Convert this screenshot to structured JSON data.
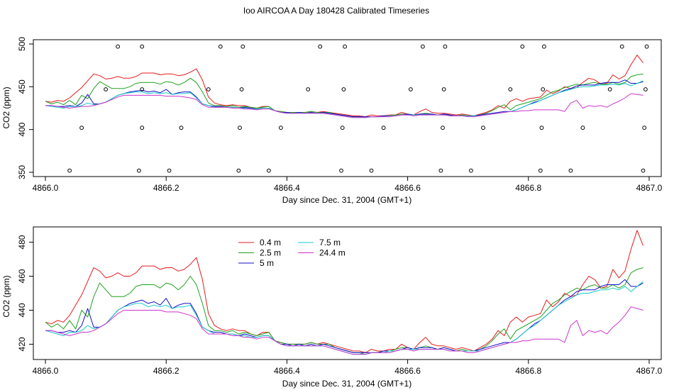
{
  "title": "Ioo AIRCOA A  Day 180428  Calibrated Timeseries",
  "colors": {
    "0.4 m": "#e41a1c",
    "2.5 m": "#1fa01f",
    "5 m": "#1010c8",
    "7.5 m": "#19c8c8",
    "24.4 m": "#cc33cc",
    "points": "#000000"
  },
  "chart_data": [
    {
      "type": "scatter",
      "panel": "top",
      "xlabel": "Day since Dec. 31, 2004 (GMT+1)",
      "ylabel": "CO2 (ppm)",
      "xlim": [
        4865.98,
        4867.02
      ],
      "ylim": [
        345,
        505
      ],
      "xticks": [
        4866.0,
        4866.2,
        4866.4,
        4866.6,
        4866.8,
        4867.0
      ],
      "xtick_labels": [
        "4866.0",
        "4866.2",
        "4866.4",
        "4866.6",
        "4866.8",
        "4867.0"
      ],
      "yticks": [
        350,
        400,
        450,
        500
      ],
      "ytick_labels": [
        "350",
        "400",
        "450",
        "500"
      ],
      "series_names": [
        "0.4 m",
        "2.5 m",
        "5 m",
        "7.5 m",
        "24.4 m"
      ],
      "points": {
        "x": [
          4866.04,
          4866.06,
          4866.1,
          4866.12,
          4866.155,
          4866.16,
          4866.16,
          4866.16,
          4866.205,
          4866.225,
          4866.27,
          4866.29,
          4866.32,
          4866.322,
          4866.325,
          4866.327,
          4866.37,
          4866.39,
          4866.435,
          4866.455,
          4866.49,
          4866.492,
          4866.494,
          4866.496,
          4866.54,
          4866.56,
          4866.605,
          4866.625,
          4866.655,
          4866.658,
          4866.66,
          4866.662,
          4866.705,
          4866.725,
          4866.77,
          4866.79,
          4866.82,
          4866.822,
          4866.824,
          4866.826,
          4866.87,
          4866.89,
          4866.935,
          4866.955,
          4866.99,
          4866.992,
          4866.994,
          4866.996
        ],
        "y": [
          352,
          402,
          447,
          497,
          352,
          402,
          447,
          497,
          352,
          402,
          447,
          497,
          352,
          402,
          447,
          497,
          352,
          402,
          447,
          497,
          352,
          402,
          447,
          497,
          352,
          402,
          447,
          497,
          352,
          402,
          447,
          497,
          352,
          402,
          447,
          497,
          352,
          402,
          447,
          497,
          352,
          402,
          447,
          497,
          352,
          402,
          447,
          497
        ]
      },
      "series": [
        {
          "name": "0.4 m",
          "values": [
            433,
            432,
            434,
            433,
            437,
            443,
            449,
            457,
            465,
            463,
            459,
            460,
            462,
            460,
            460,
            462,
            466,
            466,
            466,
            464,
            465,
            465,
            463,
            464,
            467,
            471,
            458,
            438,
            431,
            429,
            428,
            429,
            428,
            428,
            426,
            425,
            427,
            427,
            422,
            421,
            420,
            420,
            420,
            420,
            421,
            420,
            421,
            420,
            419,
            418,
            417,
            416,
            416,
            415,
            417,
            416,
            416,
            417,
            417,
            420,
            418,
            417,
            421,
            424,
            420,
            419,
            419,
            418,
            417,
            418,
            417,
            416,
            418,
            420,
            423,
            428,
            425,
            433,
            436,
            433,
            436,
            437,
            438,
            446,
            442,
            445,
            450,
            448,
            449,
            455,
            460,
            458,
            453,
            454,
            464,
            459,
            463,
            476,
            487,
            478
          ]
        },
        {
          "name": "2.5 m",
          "values": [
            433,
            430,
            432,
            429,
            434,
            429,
            440,
            436,
            448,
            456,
            452,
            448,
            448,
            448,
            450,
            454,
            455,
            455,
            455,
            453,
            456,
            455,
            452,
            455,
            460,
            455,
            444,
            431,
            428,
            428,
            427,
            428,
            426,
            427,
            426,
            425,
            426,
            427,
            422,
            421,
            420,
            420,
            420,
            420,
            421,
            420,
            420,
            420,
            418,
            417,
            416,
            415,
            415,
            414,
            415,
            415,
            416,
            416,
            417,
            418,
            418,
            417,
            418,
            419,
            418,
            417,
            418,
            417,
            416,
            417,
            416,
            416,
            417,
            419,
            422,
            426,
            429,
            423,
            428,
            430,
            432,
            434,
            436,
            440,
            444,
            446,
            449,
            451,
            453,
            452,
            454,
            455,
            453,
            453,
            455,
            453,
            455,
            462,
            464,
            465
          ]
        },
        {
          "name": "5 m",
          "values": [
            428,
            428,
            427,
            427,
            428,
            427,
            431,
            441,
            430,
            430,
            432,
            436,
            440,
            442,
            444,
            445,
            446,
            444,
            445,
            443,
            447,
            441,
            443,
            444,
            444,
            438,
            430,
            428,
            427,
            427,
            426,
            426,
            425,
            426,
            425,
            424,
            425,
            425,
            422,
            420,
            420,
            419,
            420,
            419,
            420,
            419,
            420,
            419,
            418,
            417,
            416,
            415,
            415,
            415,
            415,
            415,
            416,
            416,
            416,
            417,
            418,
            417,
            418,
            418,
            418,
            417,
            418,
            417,
            416,
            416,
            416,
            416,
            417,
            418,
            419,
            420,
            421,
            421,
            423,
            426,
            429,
            432,
            434,
            437,
            440,
            443,
            446,
            448,
            451,
            452,
            452,
            452,
            454,
            455,
            455,
            455,
            458,
            454,
            454,
            456
          ]
        },
        {
          "name": "7.5 m",
          "values": [
            428,
            427,
            426,
            425,
            427,
            427,
            428,
            431,
            429,
            430,
            432,
            436,
            440,
            442,
            443,
            444,
            444,
            442,
            443,
            442,
            443,
            441,
            442,
            442,
            443,
            437,
            430,
            428,
            426,
            426,
            426,
            426,
            425,
            425,
            424,
            424,
            425,
            425,
            422,
            420,
            419,
            419,
            419,
            419,
            419,
            419,
            419,
            418,
            417,
            416,
            415,
            414,
            414,
            414,
            415,
            415,
            415,
            416,
            416,
            417,
            417,
            417,
            417,
            417,
            417,
            417,
            417,
            416,
            416,
            416,
            416,
            416,
            416,
            417,
            418,
            419,
            420,
            421,
            423,
            426,
            429,
            431,
            434,
            437,
            440,
            443,
            445,
            447,
            449,
            450,
            450,
            451,
            452,
            452,
            453,
            452,
            454,
            451,
            454,
            457
          ]
        },
        {
          "name": "24.4 m",
          "values": [
            428,
            428,
            427,
            426,
            425,
            426,
            427,
            427,
            428,
            430,
            432,
            435,
            438,
            440,
            440,
            440,
            440,
            440,
            440,
            440,
            439,
            439,
            439,
            438,
            437,
            435,
            429,
            426,
            426,
            426,
            426,
            425,
            425,
            424,
            424,
            423,
            424,
            424,
            422,
            420,
            419,
            419,
            419,
            419,
            419,
            419,
            419,
            418,
            417,
            416,
            415,
            414,
            414,
            414,
            415,
            415,
            415,
            415,
            416,
            417,
            417,
            416,
            417,
            417,
            417,
            417,
            417,
            416,
            416,
            416,
            415,
            415,
            416,
            417,
            418,
            419,
            420,
            421,
            421,
            422,
            422,
            423,
            423,
            423,
            423,
            423,
            421,
            431,
            434,
            425,
            428,
            427,
            428,
            426,
            430,
            433,
            437,
            442,
            441,
            440
          ]
        }
      ]
    },
    {
      "type": "line",
      "panel": "bottom",
      "xlabel": "Day since Dec. 31, 2004 (GMT+1)",
      "ylabel": "CO2 (ppm)",
      "xlim": [
        4865.98,
        4867.02
      ],
      "ylim": [
        411,
        489
      ],
      "xticks": [
        4866.0,
        4866.2,
        4866.4,
        4866.6,
        4866.8,
        4867.0
      ],
      "xtick_labels": [
        "4866.0",
        "4866.2",
        "4866.4",
        "4866.6",
        "4866.8",
        "4867.0"
      ],
      "yticks": [
        420,
        440,
        460,
        480
      ],
      "ytick_labels": [
        "420",
        "440",
        "460",
        "480"
      ],
      "legend": {
        "position": "top-left",
        "columns": [
          [
            "0.4 m",
            "2.5 m",
            "5 m"
          ],
          [
            "7.5 m",
            "24.4 m"
          ]
        ]
      },
      "series_names": [
        "0.4 m",
        "2.5 m",
        "5 m",
        "7.5 m",
        "24.4 m"
      ]
    }
  ]
}
